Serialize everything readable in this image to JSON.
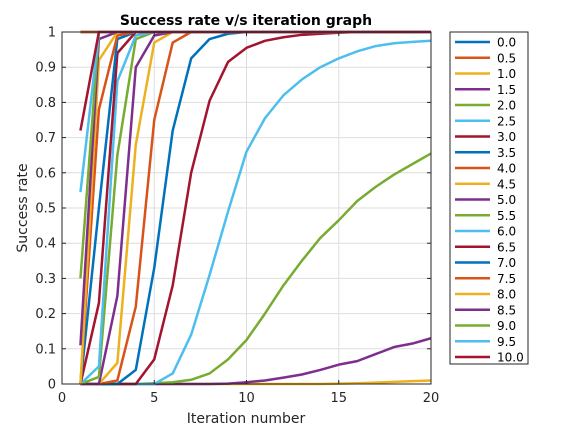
{
  "chart_data": {
    "type": "line",
    "title": "Success rate v/s iteration graph",
    "xlabel": "Iteration number",
    "ylabel": "Success rate",
    "xlim": [
      0,
      20
    ],
    "ylim": [
      0,
      1
    ],
    "xticks": [
      0,
      5,
      10,
      15,
      20
    ],
    "xtick_labels": [
      "0",
      "5",
      "10",
      "15",
      "20"
    ],
    "yticks": [
      0,
      0.1,
      0.2,
      0.3,
      0.4,
      0.5,
      0.6,
      0.7,
      0.8,
      0.9,
      1
    ],
    "ytick_labels": [
      "0",
      "0.1",
      "0.2",
      "0.3",
      "0.4",
      "0.5",
      "0.6",
      "0.7",
      "0.8",
      "0.9",
      "1"
    ],
    "grid": true,
    "legend_position": "outside-right",
    "x": [
      1,
      2,
      3,
      4,
      5,
      6,
      7,
      8,
      9,
      10,
      11,
      12,
      13,
      14,
      15,
      16,
      17,
      18,
      19,
      20
    ],
    "series": [
      {
        "name": "0.0",
        "color": "#0072bd",
        "values": [
          1,
          1,
          1,
          1,
          1,
          1,
          1,
          1,
          1,
          1,
          1,
          1,
          1,
          1,
          1,
          1,
          1,
          1,
          1,
          1
        ]
      },
      {
        "name": "0.5",
        "color": "#d95319",
        "values": [
          1,
          1,
          1,
          1,
          1,
          1,
          1,
          1,
          1,
          1,
          1,
          1,
          1,
          1,
          1,
          1,
          1,
          1,
          1,
          1
        ]
      },
      {
        "name": "1.0",
        "color": "#edb120",
        "values": [
          0,
          0,
          0,
          0,
          0,
          0,
          0,
          0,
          0,
          0,
          0,
          0,
          0,
          0,
          0.001,
          0.002,
          0.004,
          0.006,
          0.008,
          0.01
        ]
      },
      {
        "name": "1.5",
        "color": "#7e2f8e",
        "values": [
          0,
          0,
          0,
          0,
          0,
          0,
          0,
          0,
          0.001,
          0.005,
          0.01,
          0.018,
          0.027,
          0.04,
          0.055,
          0.065,
          0.085,
          0.105,
          0.115,
          0.13
        ]
      },
      {
        "name": "2.0",
        "color": "#77ac30",
        "values": [
          0,
          0,
          0,
          0,
          0.002,
          0.005,
          0.012,
          0.03,
          0.07,
          0.125,
          0.2,
          0.28,
          0.35,
          0.415,
          0.465,
          0.52,
          0.56,
          0.595,
          0.625,
          0.655
        ]
      },
      {
        "name": "2.5",
        "color": "#4dbeee",
        "values": [
          0,
          0,
          0,
          0,
          0,
          0.03,
          0.14,
          0.31,
          0.49,
          0.66,
          0.755,
          0.82,
          0.865,
          0.9,
          0.925,
          0.945,
          0.96,
          0.968,
          0.972,
          0.975
        ]
      },
      {
        "name": "3.0",
        "color": "#a2142f",
        "values": [
          0,
          0,
          0,
          0,
          0.07,
          0.28,
          0.6,
          0.805,
          0.915,
          0.955,
          0.975,
          0.985,
          0.992,
          0.995,
          0.998,
          1,
          1,
          1,
          1,
          1
        ]
      },
      {
        "name": "3.5",
        "color": "#0072bd",
        "values": [
          0,
          0,
          0,
          0.04,
          0.33,
          0.72,
          0.925,
          0.98,
          0.995,
          1,
          1,
          1,
          1,
          1,
          1,
          1,
          1,
          1,
          1,
          1
        ]
      },
      {
        "name": "4.0",
        "color": "#d95319",
        "values": [
          0,
          0,
          0.01,
          0.22,
          0.75,
          0.97,
          1,
          1,
          1,
          1,
          1,
          1,
          1,
          1,
          1,
          1,
          1,
          1,
          1,
          1
        ]
      },
      {
        "name": "4.5",
        "color": "#edb120",
        "values": [
          0,
          0,
          0.06,
          0.68,
          0.97,
          1,
          1,
          1,
          1,
          1,
          1,
          1,
          1,
          1,
          1,
          1,
          1,
          1,
          1,
          1
        ]
      },
      {
        "name": "5.0",
        "color": "#7e2f8e",
        "values": [
          0,
          0,
          0.25,
          0.9,
          0.99,
          1,
          1,
          1,
          1,
          1,
          1,
          1,
          1,
          1,
          1,
          1,
          1,
          1,
          1,
          1
        ]
      },
      {
        "name": "5.5",
        "color": "#77ac30",
        "values": [
          0,
          0.02,
          0.65,
          0.98,
          1,
          1,
          1,
          1,
          1,
          1,
          1,
          1,
          1,
          1,
          1,
          1,
          1,
          1,
          1,
          1
        ]
      },
      {
        "name": "6.0",
        "color": "#4dbeee",
        "values": [
          0,
          0.05,
          0.86,
          0.99,
          1,
          1,
          1,
          1,
          1,
          1,
          1,
          1,
          1,
          1,
          1,
          1,
          1,
          1,
          1,
          1
        ]
      },
      {
        "name": "6.5",
        "color": "#a2142f",
        "values": [
          0,
          0.23,
          0.94,
          1,
          1,
          1,
          1,
          1,
          1,
          1,
          1,
          1,
          1,
          1,
          1,
          1,
          1,
          1,
          1,
          1
        ]
      },
      {
        "name": "7.0",
        "color": "#0072bd",
        "values": [
          0,
          0.5,
          0.98,
          1,
          1,
          1,
          1,
          1,
          1,
          1,
          1,
          1,
          1,
          1,
          1,
          1,
          1,
          1,
          1,
          1
        ]
      },
      {
        "name": "7.5",
        "color": "#d95319",
        "values": [
          0,
          0.78,
          0.99,
          1,
          1,
          1,
          1,
          1,
          1,
          1,
          1,
          1,
          1,
          1,
          1,
          1,
          1,
          1,
          1,
          1
        ]
      },
      {
        "name": "8.0",
        "color": "#edb120",
        "values": [
          0,
          0.92,
          1,
          1,
          1,
          1,
          1,
          1,
          1,
          1,
          1,
          1,
          1,
          1,
          1,
          1,
          1,
          1,
          1,
          1
        ]
      },
      {
        "name": "8.5",
        "color": "#7e2f8e",
        "values": [
          0.11,
          0.98,
          1,
          1,
          1,
          1,
          1,
          1,
          1,
          1,
          1,
          1,
          1,
          1,
          1,
          1,
          1,
          1,
          1,
          1
        ]
      },
      {
        "name": "9.0",
        "color": "#77ac30",
        "values": [
          0.3,
          1,
          1,
          1,
          1,
          1,
          1,
          1,
          1,
          1,
          1,
          1,
          1,
          1,
          1,
          1,
          1,
          1,
          1,
          1
        ]
      },
      {
        "name": "9.5",
        "color": "#4dbeee",
        "values": [
          0.545,
          1,
          1,
          1,
          1,
          1,
          1,
          1,
          1,
          1,
          1,
          1,
          1,
          1,
          1,
          1,
          1,
          1,
          1,
          1
        ]
      },
      {
        "name": "10.0",
        "color": "#a2142f",
        "values": [
          0.72,
          1,
          1,
          1,
          1,
          1,
          1,
          1,
          1,
          1,
          1,
          1,
          1,
          1,
          1,
          1,
          1,
          1,
          1,
          1
        ]
      }
    ]
  }
}
